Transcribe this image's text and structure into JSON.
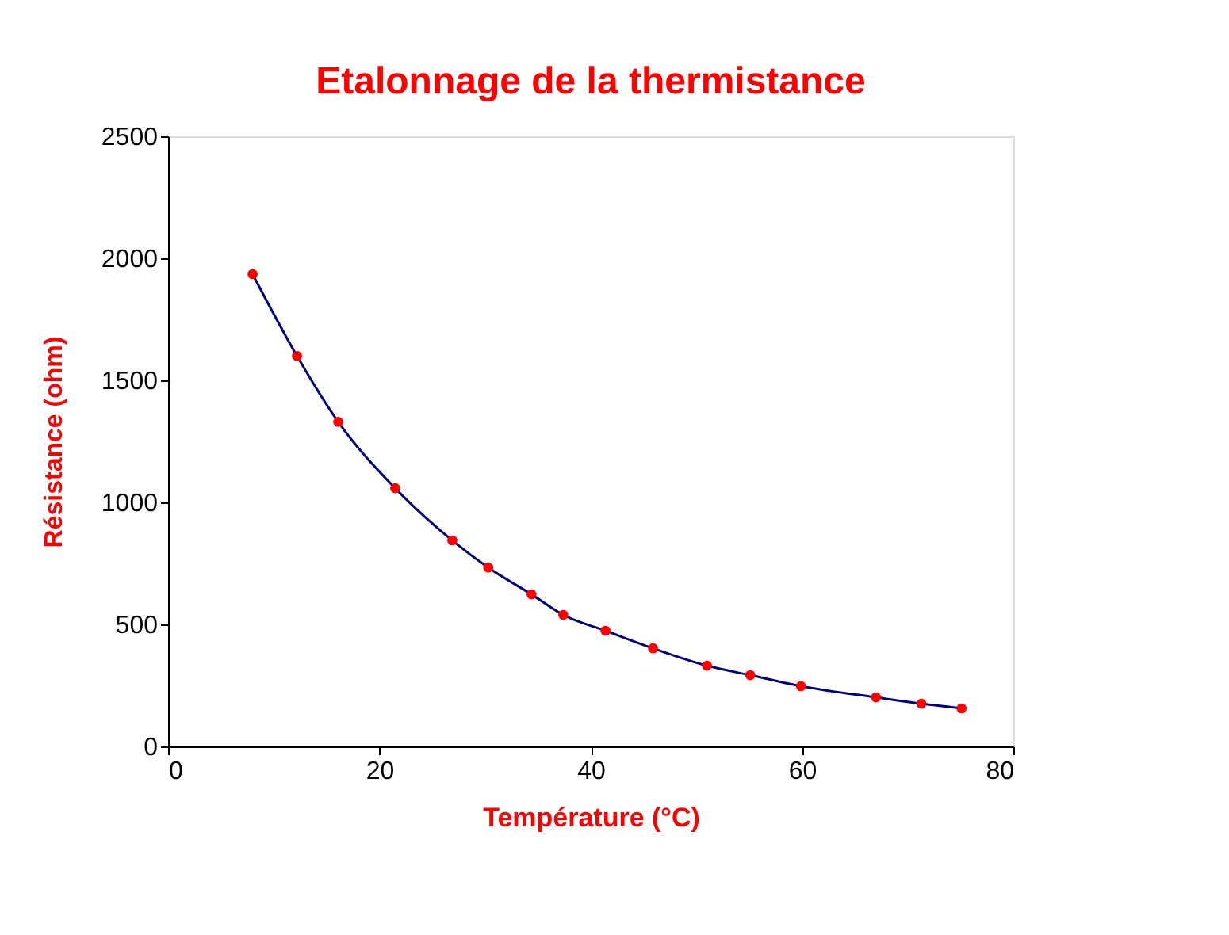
{
  "chart_data": {
    "type": "line",
    "title": "Etalonnage de la thermistance",
    "xlabel": "Température (°C)",
    "ylabel": "Résistance (ohm)",
    "x": [
      8,
      12.2,
      16.1,
      21.5,
      26.9,
      30.3,
      34.4,
      37.4,
      41.4,
      45.9,
      51.0,
      55.1,
      59.9,
      67.0,
      71.3,
      75.1
    ],
    "series": [
      {
        "color": "#000080",
        "values": [
          1935,
          1600,
          1330,
          1058,
          844,
          733,
          623,
          539,
          474,
          402,
          331,
          292,
          247,
          201,
          175,
          156
        ]
      }
    ],
    "marker": "circle",
    "line_style": "solid",
    "xlim": [
      0,
      80
    ],
    "xticks": [
      0,
      20,
      40,
      60,
      80
    ],
    "ylim": [
      0,
      2500
    ],
    "yticks": [
      0,
      500,
      1000,
      1500,
      2000,
      2500
    ],
    "grid": false,
    "legend": false
  }
}
